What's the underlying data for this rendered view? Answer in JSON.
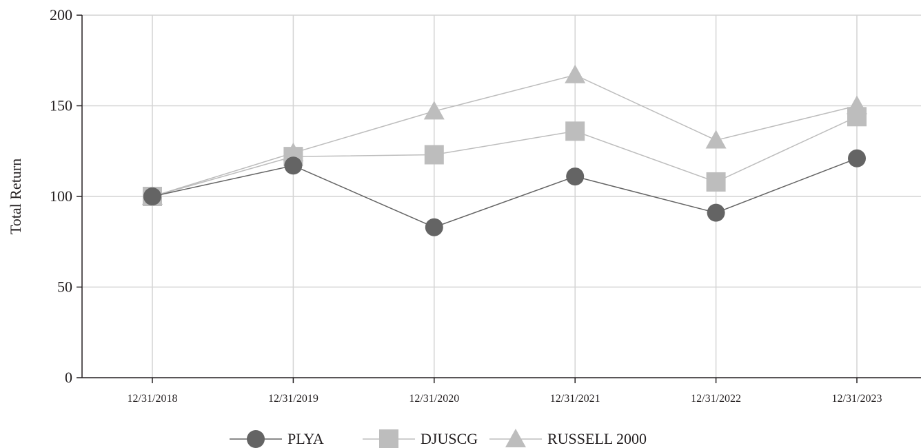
{
  "chart_data": {
    "type": "line",
    "title": "",
    "xlabel": "",
    "ylabel": "Total Return",
    "categories": [
      "12/31/2018",
      "12/31/2019",
      "12/31/2020",
      "12/31/2021",
      "12/31/2022",
      "12/31/2023"
    ],
    "ylim": [
      0,
      200
    ],
    "yticks": [
      "0",
      "50",
      "100",
      "150",
      "200"
    ],
    "grid": true,
    "legend_position": "bottom",
    "series": [
      {
        "name": "PLYA",
        "marker": "circle",
        "color": "#646464",
        "values": [
          100,
          117,
          83,
          111,
          91,
          121
        ]
      },
      {
        "name": "DJUSCG",
        "marker": "square",
        "color": "#bdbdbd",
        "values": [
          100,
          122,
          123,
          136,
          108,
          144
        ]
      },
      {
        "name": "RUSSELL 2000",
        "marker": "triangle",
        "color": "#bdbdbd",
        "values": [
          100,
          124,
          147,
          167,
          131,
          150
        ]
      }
    ]
  }
}
